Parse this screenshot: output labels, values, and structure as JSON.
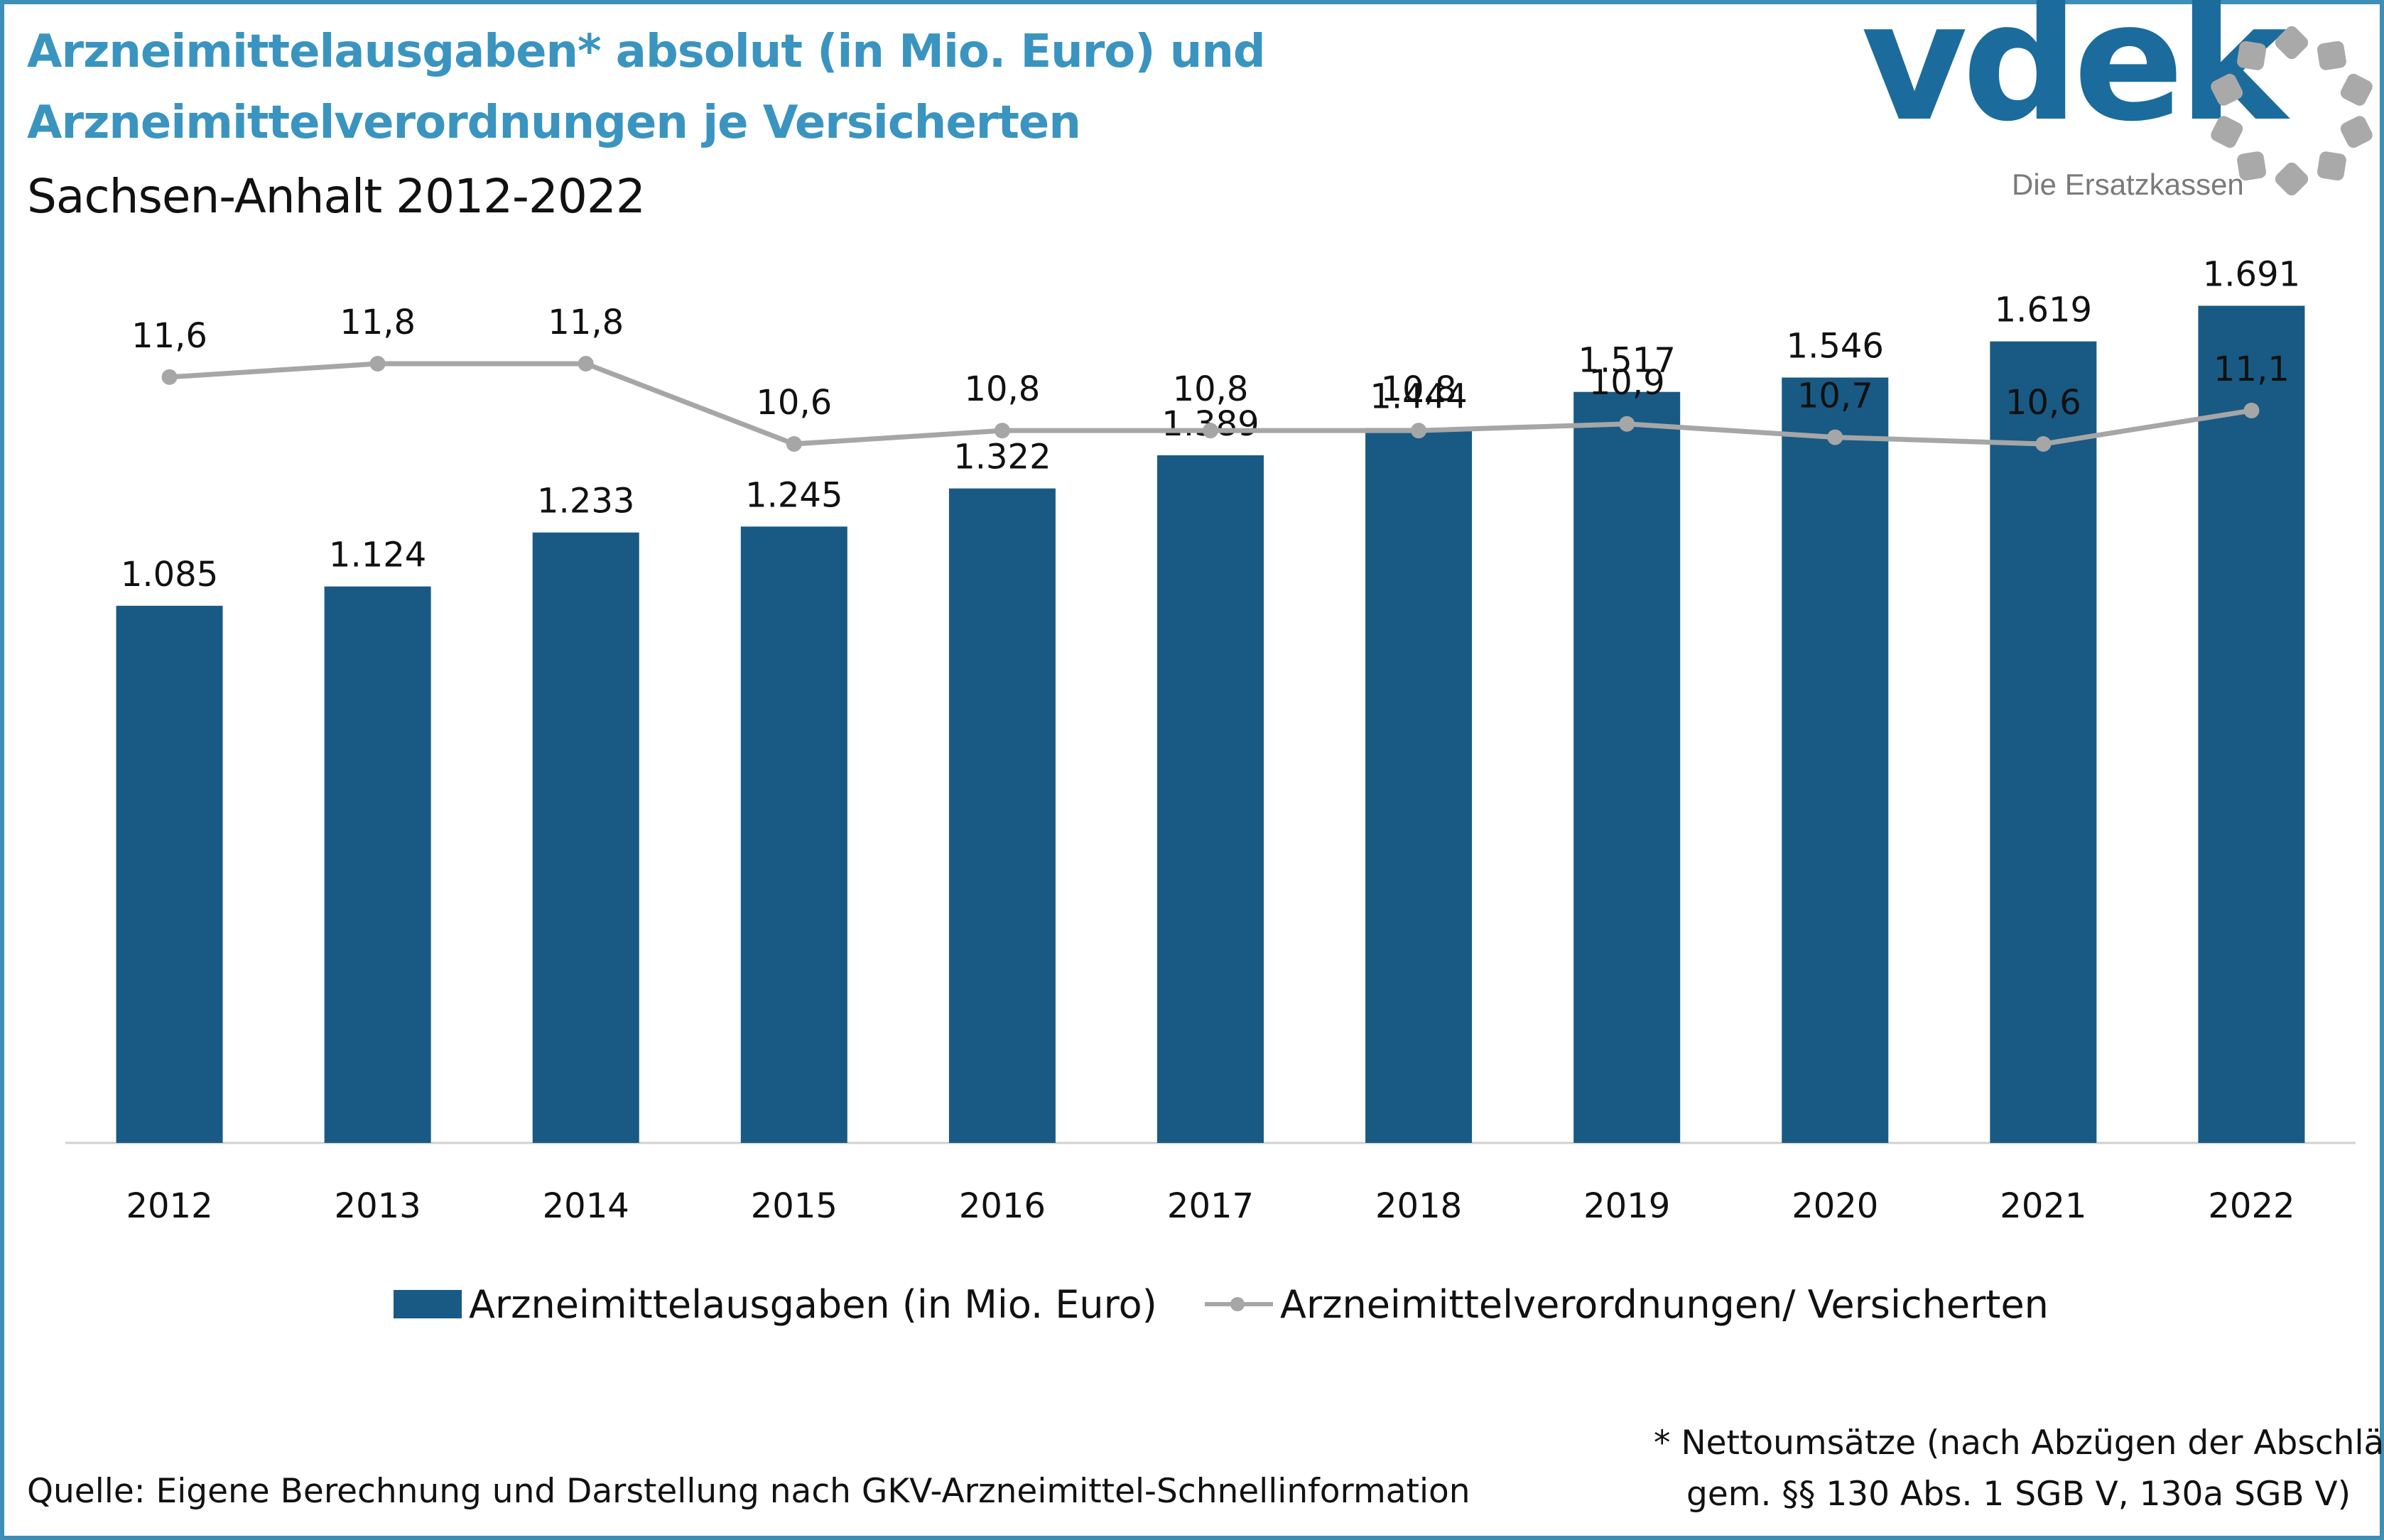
{
  "title_line1": "Arzneimittelausgaben* absolut (in Mio. Euro) und",
  "title_line2": "Arzneimittelverordnungen je Versicherten",
  "subtitle": "Sachsen-Anhalt 2012-2022",
  "logo": {
    "text": "vdek",
    "tagline": "Die Ersatzkassen",
    "icon": "dot-ring-icon"
  },
  "colors": {
    "title": "#3a94c0",
    "bar": "#185a84",
    "line": "#a6a6a6",
    "logo": "#1b6c9c",
    "logo_ring": "#a9a9a9",
    "frame": "#3d8fb8"
  },
  "chart_data": {
    "type": "bar",
    "categories": [
      "2012",
      "2013",
      "2014",
      "2015",
      "2016",
      "2017",
      "2018",
      "2019",
      "2020",
      "2021",
      "2022"
    ],
    "series": [
      {
        "name": "Arzneimittelausgaben (in Mio. Euro)",
        "type": "bar",
        "values": [
          1085,
          1124,
          1233,
          1245,
          1322,
          1389,
          1444,
          1517,
          1546,
          1619,
          1691
        ],
        "labels": [
          "1.085",
          "1.124",
          "1.233",
          "1.245",
          "1.322",
          "1.389",
          "1.444",
          "1.517",
          "1.546",
          "1.619",
          "1.691"
        ]
      },
      {
        "name": "Arzneimittelverordnungen/ Versicherten",
        "type": "line",
        "values": [
          11.6,
          11.8,
          11.8,
          10.6,
          10.8,
          10.8,
          10.8,
          10.9,
          10.7,
          10.6,
          11.1
        ],
        "labels": [
          "11,6",
          "11,8",
          "11,8",
          "10,6",
          "10,8",
          "10,8",
          "10,8",
          "10,9",
          "10,7",
          "10,6",
          "11,1"
        ]
      }
    ],
    "ylim_bar": [
      0,
      2300
    ],
    "ylim_line": [
      10.6,
      11.8
    ],
    "grid": false,
    "legend_position": "bottom"
  },
  "legend": {
    "bar_label": "Arzneimittelausgaben (in Mio. Euro)",
    "line_label": "Arzneimittelverordnungen/ Versicherten"
  },
  "source": "Quelle: Eigene Berechnung und Darstellung nach GKV-Arzneimittel-Schnellinformation",
  "footnote": {
    "line1": "* Nettoumsätze (nach Abzügen der Abschläge",
    "line2": "gem. §§ 130 Abs. 1 SGB V, 130a SGB V)"
  }
}
